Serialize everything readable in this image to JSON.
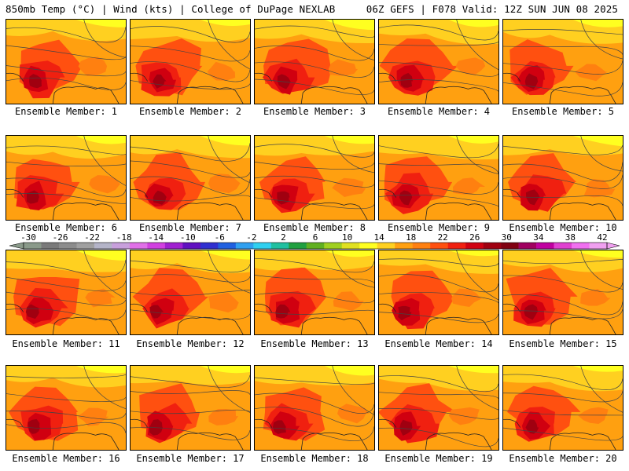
{
  "header": {
    "left": "850mb Temp (°C) | Wind (kts) | College of DuPage NEXLAB",
    "right": "06Z GEFS | F078 Valid: 12Z SUN JUN 08 2025"
  },
  "panels": [
    {
      "label": "Ensemble Member: 1"
    },
    {
      "label": "Ensemble Member: 2"
    },
    {
      "label": "Ensemble Member: 3"
    },
    {
      "label": "Ensemble Member: 4"
    },
    {
      "label": "Ensemble Member: 5"
    },
    {
      "label": "Ensemble Member: 6"
    },
    {
      "label": "Ensemble Member: 7"
    },
    {
      "label": "Ensemble Member: 8"
    },
    {
      "label": "Ensemble Member: 9"
    },
    {
      "label": "Ensemble Member: 10"
    },
    {
      "label": "Ensemble Member: 11"
    },
    {
      "label": "Ensemble Member: 12"
    },
    {
      "label": "Ensemble Member: 13"
    },
    {
      "label": "Ensemble Member: 14"
    },
    {
      "label": "Ensemble Member: 15"
    },
    {
      "label": "Ensemble Member: 16"
    },
    {
      "label": "Ensemble Member: 17"
    },
    {
      "label": "Ensemble Member: 18"
    },
    {
      "label": "Ensemble Member: 19"
    },
    {
      "label": "Ensemble Member: 20"
    }
  ],
  "colorbar": {
    "labels": [
      "-30",
      "-26",
      "-22",
      "-18",
      "-14",
      "-10",
      "-6",
      "-2",
      "2",
      "6",
      "10",
      "14",
      "18",
      "22",
      "26",
      "30",
      "34",
      "38",
      "42"
    ],
    "colors": [
      "#8a9a8a",
      "#7a7a7a",
      "#8c8c8c",
      "#a0a0a0",
      "#b4b4c8",
      "#c8a0dc",
      "#e070e8",
      "#d040e0",
      "#a020d0",
      "#6010c0",
      "#3030d0",
      "#2060e0",
      "#30a0f0",
      "#30d0f0",
      "#20c0a0",
      "#20a040",
      "#60b020",
      "#a0d020",
      "#e0e020",
      "#ffff20",
      "#ffd020",
      "#ffa010",
      "#ff8010",
      "#ff5010",
      "#f02010",
      "#d00010",
      "#a00010",
      "#800010",
      "#a00060",
      "#c000a0",
      "#e040d0",
      "#f070f0",
      "#f0a0f0"
    ]
  }
}
